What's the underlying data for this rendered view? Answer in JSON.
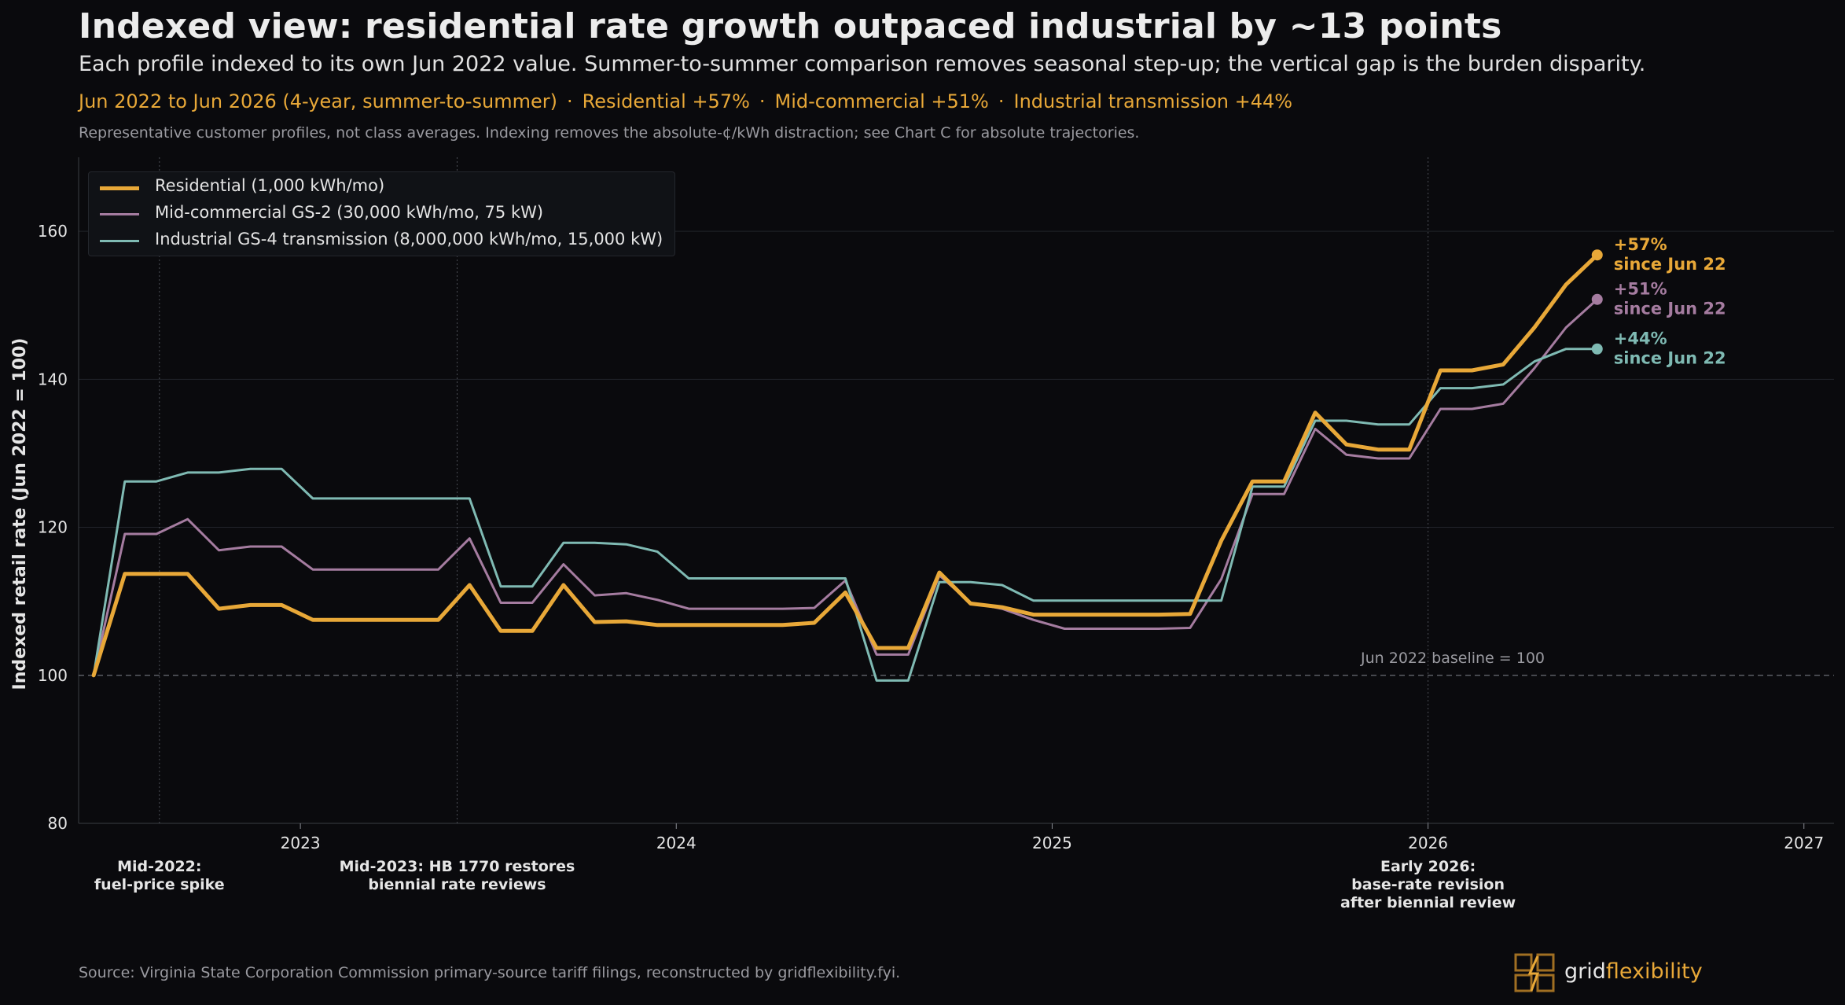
{
  "header": {
    "title": "Indexed view: residential rate growth outpaced industrial by ~13 points",
    "subtitle": "Each profile indexed to its own Jun 2022 value. Summer-to-summer comparison removes seasonal step-up; the vertical gap is the burden disparity.",
    "highlight_period": "Jun 2022 to Jun 2026 (4-year, summer-to-summer)",
    "highlight_res": "Residential +57%",
    "highlight_mid": "Mid-commercial +51%",
    "highlight_ind": "Industrial transmission +44%",
    "separator": "·",
    "note": "Representative customer profiles, not class averages. Indexing removes the absolute-¢/kWh distraction; see Chart C for absolute trajectories."
  },
  "footer": {
    "source": "Source: Virginia State Corporation Commission primary-source tariff filings, reconstructed by gridflexibility.fyi.",
    "logo_grid": "grid",
    "logo_flex": "flexibility"
  },
  "colors": {
    "residential": "#e8a838",
    "mid_commercial": "#a57ca0",
    "industrial": "#7fbab3",
    "background": "#0a0a0d",
    "gridline": "#22242a",
    "text": "#e6e6e6",
    "muted": "#9a9aa0"
  },
  "chart_data": {
    "type": "line",
    "ylabel": "Indexed retail rate (Jun 2022 = 100)",
    "xlabel": "",
    "ylim": [
      80,
      170
    ],
    "xlim": [
      2022.41,
      2027.08
    ],
    "y_ticks": [
      80,
      100,
      120,
      140,
      160
    ],
    "y_tick_labels": [
      "80",
      "100",
      "120",
      "140",
      "160"
    ],
    "x_ticks": [
      2023,
      2024,
      2025,
      2026,
      2027
    ],
    "x_tick_labels": [
      "2023",
      "2024",
      "2025",
      "2026",
      "2027"
    ],
    "grid": "horizontal",
    "legend_position": "top-left",
    "baseline": {
      "value": 100,
      "label": "Jun 2022 baseline = 100"
    },
    "event_lines": [
      {
        "x": 2022.625,
        "label_line1": "Mid-2022:",
        "label_line2": "fuel-price spike",
        "label_line3": ""
      },
      {
        "x": 2023.417,
        "label_line1": "Mid-2023: HB 1770 restores",
        "label_line2": "biennial rate reviews",
        "label_line3": ""
      },
      {
        "x": 2026.0,
        "label_line1": "Early 2026:",
        "label_line2": "base-rate revision",
        "label_line3": "after biennial review"
      }
    ],
    "series": [
      {
        "name": "Mid-commercial GS-2 (30,000 kWh/mo, 75 kW)",
        "key": "mid",
        "end_label_line1": "+51%",
        "end_label_line2": "since Jun 22",
        "x": [
          2022.45,
          2022.533,
          2022.617,
          2022.7,
          2022.783,
          2022.867,
          2022.95,
          2023.033,
          2023.117,
          2023.2,
          2023.283,
          2023.367,
          2023.45,
          2023.533,
          2023.617,
          2023.7,
          2023.783,
          2023.867,
          2023.95,
          2024.033,
          2024.117,
          2024.2,
          2024.283,
          2024.367,
          2024.45,
          2024.533,
          2024.617,
          2024.7,
          2024.783,
          2024.867,
          2024.95,
          2025.033,
          2025.117,
          2025.2,
          2025.283,
          2025.367,
          2025.45,
          2025.533,
          2025.617,
          2025.7,
          2025.783,
          2025.867,
          2025.95,
          2026.033,
          2026.117,
          2026.2,
          2026.283,
          2026.367,
          2026.45
        ],
        "y": [
          100,
          119.1,
          119.1,
          121.1,
          116.9,
          117.4,
          117.4,
          114.3,
          114.3,
          114.3,
          114.3,
          114.3,
          118.5,
          109.8,
          109.8,
          115.0,
          110.8,
          111.1,
          110.2,
          109.0,
          109.0,
          109.0,
          109.0,
          109.1,
          112.8,
          102.8,
          102.8,
          113.5,
          109.8,
          109.0,
          107.5,
          106.3,
          106.3,
          106.3,
          106.3,
          106.4,
          113.0,
          124.5,
          124.5,
          133.3,
          129.8,
          129.3,
          129.3,
          136.0,
          136.0,
          136.7,
          141.5,
          147.0,
          150.8
        ]
      },
      {
        "name": "Industrial GS-4 transmission (8,000,000 kWh/mo, 15,000 kW)",
        "key": "ind",
        "end_label_line1": "+44%",
        "end_label_line2": "since Jun 22",
        "x": [
          2022.45,
          2022.533,
          2022.617,
          2022.7,
          2022.783,
          2022.867,
          2022.95,
          2023.033,
          2023.117,
          2023.2,
          2023.283,
          2023.367,
          2023.45,
          2023.533,
          2023.617,
          2023.7,
          2023.783,
          2023.867,
          2023.95,
          2024.033,
          2024.117,
          2024.2,
          2024.283,
          2024.367,
          2024.45,
          2024.533,
          2024.617,
          2024.7,
          2024.783,
          2024.867,
          2024.95,
          2025.033,
          2025.117,
          2025.2,
          2025.283,
          2025.367,
          2025.45,
          2025.533,
          2025.617,
          2025.7,
          2025.783,
          2025.867,
          2025.95,
          2026.033,
          2026.117,
          2026.2,
          2026.283,
          2026.367,
          2026.45
        ],
        "y": [
          100,
          126.2,
          126.2,
          127.4,
          127.4,
          127.9,
          127.9,
          123.9,
          123.9,
          123.9,
          123.9,
          123.9,
          123.9,
          112.0,
          112.0,
          117.9,
          117.9,
          117.7,
          116.7,
          113.1,
          113.1,
          113.1,
          113.1,
          113.1,
          113.1,
          99.3,
          99.3,
          112.6,
          112.6,
          112.2,
          110.1,
          110.1,
          110.1,
          110.1,
          110.1,
          110.1,
          110.1,
          125.5,
          125.5,
          134.4,
          134.4,
          133.9,
          133.9,
          138.8,
          138.8,
          139.3,
          142.4,
          144.1,
          144.1
        ]
      },
      {
        "name": "Residential (1,000 kWh/mo)",
        "key": "res",
        "end_label_line1": "+57%",
        "end_label_line2": "since Jun 22",
        "x": [
          2022.45,
          2022.533,
          2022.617,
          2022.7,
          2022.783,
          2022.867,
          2022.95,
          2023.033,
          2023.117,
          2023.2,
          2023.283,
          2023.367,
          2023.45,
          2023.533,
          2023.617,
          2023.7,
          2023.783,
          2023.867,
          2023.95,
          2024.033,
          2024.117,
          2024.2,
          2024.283,
          2024.367,
          2024.45,
          2024.533,
          2024.617,
          2024.7,
          2024.783,
          2024.867,
          2024.95,
          2025.033,
          2025.117,
          2025.2,
          2025.283,
          2025.367,
          2025.45,
          2025.533,
          2025.617,
          2025.7,
          2025.783,
          2025.867,
          2025.95,
          2026.033,
          2026.117,
          2026.2,
          2026.283,
          2026.367,
          2026.45
        ],
        "y": [
          100,
          113.7,
          113.7,
          113.7,
          109.0,
          109.5,
          109.5,
          107.5,
          107.5,
          107.5,
          107.5,
          107.5,
          112.2,
          106.0,
          106.0,
          112.2,
          107.2,
          107.3,
          106.8,
          106.8,
          106.8,
          106.8,
          106.8,
          107.1,
          111.2,
          103.7,
          103.7,
          113.9,
          109.7,
          109.2,
          108.2,
          108.2,
          108.2,
          108.2,
          108.2,
          108.3,
          118.2,
          126.2,
          126.2,
          135.5,
          131.2,
          130.5,
          130.5,
          141.2,
          141.2,
          142.0,
          147.0,
          152.8,
          156.8
        ]
      }
    ],
    "legend": [
      {
        "key": "res",
        "label": "Residential (1,000 kWh/mo)"
      },
      {
        "key": "mid",
        "label": "Mid-commercial GS-2 (30,000 kWh/mo, 75 kW)"
      },
      {
        "key": "ind",
        "label": "Industrial GS-4 transmission (8,000,000 kWh/mo, 15,000 kW)"
      }
    ]
  }
}
